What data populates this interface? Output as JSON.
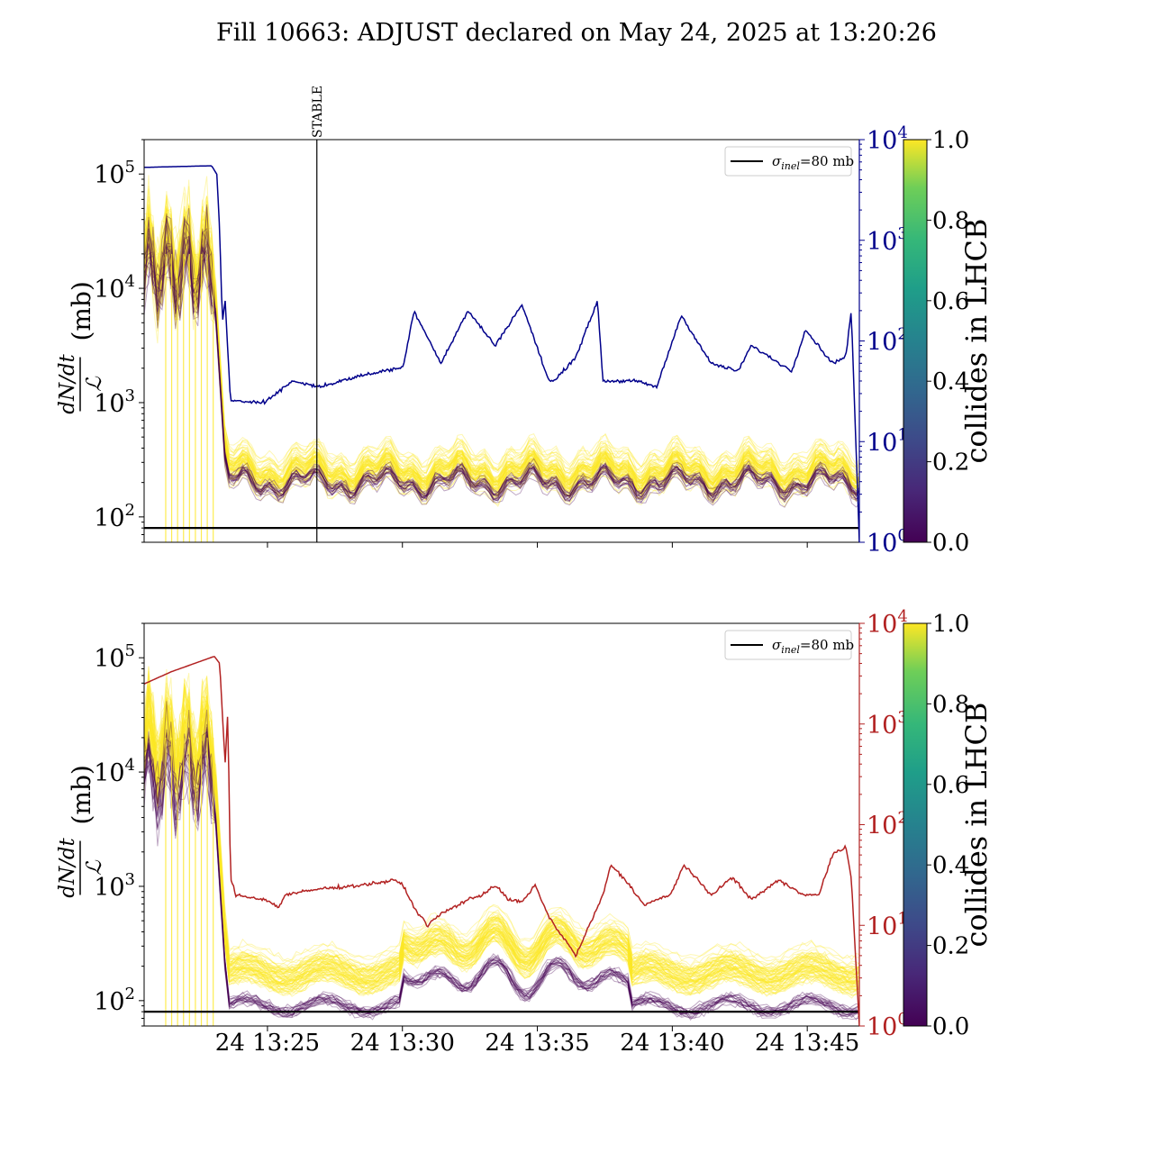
{
  "figure": {
    "title": "Fill 10663: ADJUST declared on May 24, 2025 at 13:20:26"
  },
  "chart_data": [
    {
      "type": "line",
      "panel": "top",
      "ylabel_fraction": {
        "numerator": "dN/dt",
        "denominator": "ℒ",
        "unit": "(mb)"
      },
      "yscale": "log",
      "ylim": [
        60,
        200000
      ],
      "yticks": [
        {
          "base": "10",
          "exp": "2",
          "value": 100
        },
        {
          "base": "10",
          "exp": "3",
          "value": 1000
        },
        {
          "base": "10",
          "exp": "4",
          "value": 10000
        },
        {
          "base": "10",
          "exp": "5",
          "value": 100000
        }
      ],
      "xlim": [
        "2025-05-24 13:20:26",
        "2025-05-24 13:46:56"
      ],
      "xtick_labels_shown": false,
      "right_axis": {
        "scale": "log",
        "ylim": [
          1,
          10000
        ],
        "color": "#00008b",
        "ticks": [
          {
            "base": "10",
            "exp": "0",
            "value": 1
          },
          {
            "base": "10",
            "exp": "1",
            "value": 10
          },
          {
            "base": "10",
            "exp": "2",
            "value": 100
          },
          {
            "base": "10",
            "exp": "3",
            "value": 1000
          },
          {
            "base": "10",
            "exp": "4",
            "value": 10000
          }
        ]
      },
      "vline": {
        "time": "2025-05-24 13:26:50",
        "label": "STABLE"
      },
      "hline": {
        "value": 80,
        "color": "#000000"
      },
      "legend": {
        "position": "top-right",
        "label_sym": "σ",
        "label_sub": "inel",
        "label_rest": "=80 mb"
      },
      "colorbar": {
        "label": "collides in LHCB",
        "range": [
          0,
          1
        ],
        "ticks": [
          "0.0",
          "0.2",
          "0.4",
          "0.6",
          "0.8",
          "1.0"
        ]
      },
      "series_colors": {
        "colliding": "#fde725",
        "non_colliding": "#440154",
        "ratio": "#00008b"
      },
      "ratio_series": {
        "t_min": [
          0,
          2.5,
          2.7,
          2.8,
          2.9,
          3.0,
          3.2,
          4.5,
          5.5,
          6.5,
          8,
          9.6,
          10,
          11,
          12,
          13,
          14,
          15,
          15.2,
          16,
          16.8,
          17,
          18,
          18.2,
          19,
          19.9,
          21,
          22,
          22.5,
          24,
          24.5,
          25.5,
          26,
          26.2,
          26.5
        ],
        "value": [
          5300,
          5500,
          4500,
          1200,
          150,
          260,
          25,
          25,
          40,
          35,
          45,
          55,
          200,
          60,
          200,
          90,
          230,
          40,
          40,
          70,
          250,
          40,
          40,
          40,
          35,
          180,
          60,
          50,
          90,
          50,
          130,
          60,
          70,
          200,
          1
        ]
      }
    },
    {
      "type": "line",
      "panel": "bottom",
      "ylabel_fraction": {
        "numerator": "dN/dt",
        "denominator": "ℒ",
        "unit": "(mb)"
      },
      "yscale": "log",
      "ylim": [
        60,
        200000
      ],
      "yticks": [
        {
          "base": "10",
          "exp": "2",
          "value": 100
        },
        {
          "base": "10",
          "exp": "3",
          "value": 1000
        },
        {
          "base": "10",
          "exp": "4",
          "value": 10000
        },
        {
          "base": "10",
          "exp": "5",
          "value": 100000
        }
      ],
      "xlim": [
        "2025-05-24 13:20:26",
        "2025-05-24 13:46:56"
      ],
      "xticks": [
        {
          "label": "24 13:25",
          "t_min": 4.57
        },
        {
          "label": "24 13:30",
          "t_min": 9.57
        },
        {
          "label": "24 13:35",
          "t_min": 14.57
        },
        {
          "label": "24 13:40",
          "t_min": 19.57
        },
        {
          "label": "24 13:45",
          "t_min": 24.57
        }
      ],
      "right_axis": {
        "scale": "log",
        "ylim": [
          1,
          10000
        ],
        "color": "#b22222",
        "ticks": [
          {
            "base": "10",
            "exp": "0",
            "value": 1
          },
          {
            "base": "10",
            "exp": "1",
            "value": 10
          },
          {
            "base": "10",
            "exp": "2",
            "value": 100
          },
          {
            "base": "10",
            "exp": "3",
            "value": 1000
          },
          {
            "base": "10",
            "exp": "4",
            "value": 10000
          }
        ]
      },
      "hline": {
        "value": 80,
        "color": "#000000"
      },
      "legend": {
        "position": "top-right",
        "label_sym": "σ",
        "label_sub": "inel",
        "label_rest": "=80 mb"
      },
      "colorbar": {
        "label": "collides in LHCB",
        "range": [
          0,
          1
        ],
        "ticks": [
          "0.0",
          "0.2",
          "0.4",
          "0.6",
          "0.8",
          "1.0"
        ]
      },
      "series_colors": {
        "colliding": "#fde725",
        "non_colliding": "#440154",
        "ratio": "#b22222"
      },
      "ratio_series": {
        "t_min": [
          0,
          1,
          2.6,
          2.8,
          3.0,
          3.1,
          3.2,
          3.4,
          4.5,
          5,
          5.2,
          6.5,
          8,
          9.3,
          9.6,
          10,
          10.5,
          11,
          12,
          12.5,
          13,
          13.5,
          14,
          14.5,
          15,
          16,
          17,
          17.3,
          18,
          18.5,
          19.5,
          20,
          21,
          21.8,
          22.5,
          23.5,
          24.5,
          25,
          25.5,
          26,
          26.2,
          26.5
        ],
        "value": [
          2500,
          3300,
          4700,
          4000,
          400,
          1300,
          30,
          20,
          18,
          15,
          20,
          23,
          25,
          28,
          25,
          15,
          10,
          13,
          18,
          20,
          25,
          18,
          17,
          25,
          12,
          5,
          20,
          40,
          25,
          16,
          20,
          40,
          20,
          30,
          18,
          28,
          20,
          20,
          50,
          60,
          30,
          1
        ]
      }
    }
  ]
}
